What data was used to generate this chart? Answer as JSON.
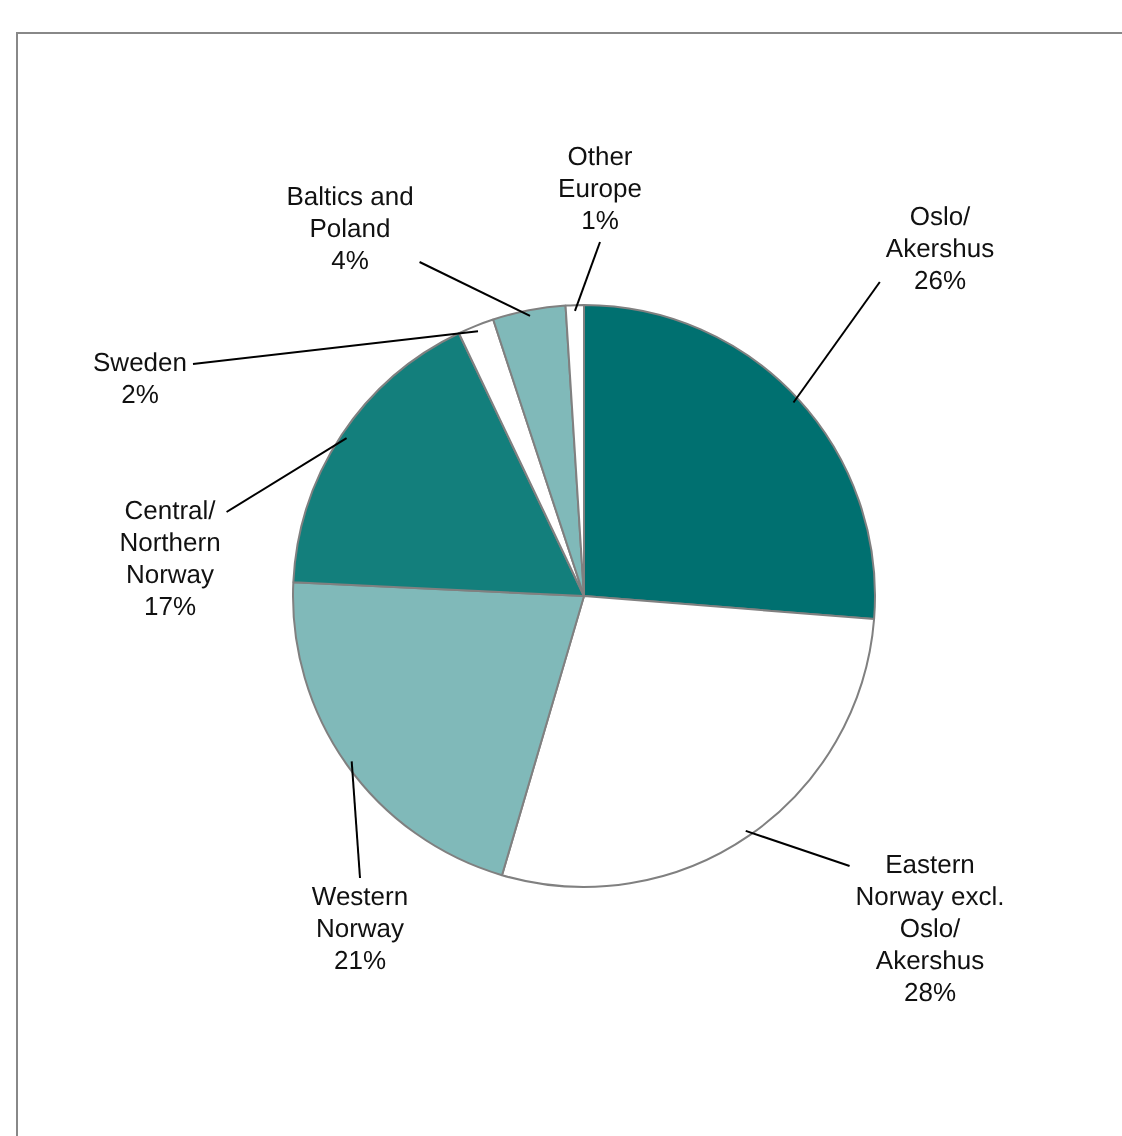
{
  "chart_data": {
    "type": "pie",
    "categories": [
      "Oslo/ Akershus",
      "Eastern Norway excl. Oslo/ Akershus",
      "Western Norway",
      "Central/ Northern Norway",
      "Sweden",
      "Baltics and Poland",
      "Other Europe"
    ],
    "values": [
      26,
      28,
      21,
      17,
      2,
      4,
      1
    ],
    "colors": [
      "#007070",
      "#ffffff",
      "#80b9b9",
      "#137f7c",
      "#ffffff",
      "#80b9b9",
      "#ffffff"
    ],
    "value_labels": [
      "26%",
      "28%",
      "21%",
      "17%",
      "2%",
      "4%",
      "1%"
    ],
    "legend": false
  }
}
